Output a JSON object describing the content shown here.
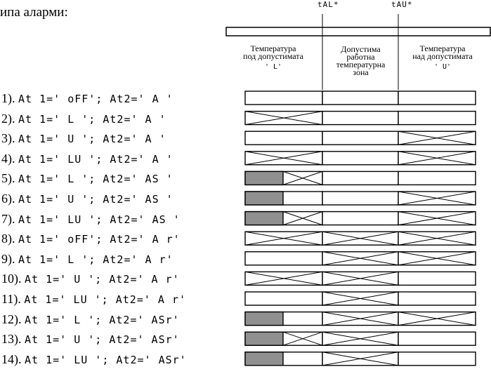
{
  "intro_text": "ипа аларми:",
  "markers": {
    "low": "tAL*",
    "high": "tAU*"
  },
  "columns": {
    "below": [
      "Температура",
      "под допустимата"
    ],
    "below_code": "' L'",
    "work": [
      "Допустима",
      "работна",
      "температурна",
      "зона"
    ],
    "above": [
      "Температура",
      "над допустимата"
    ],
    "above_code": "' U'"
  },
  "rows": [
    {
      "index": "1).",
      "config": "At 1=' oFF'; At2=' A '",
      "cells": [
        "blank",
        "blank",
        "blank"
      ]
    },
    {
      "index": "2).",
      "config": "At 1=' L '; At2=' A '",
      "cells": [
        "cross",
        "blank",
        "blank"
      ]
    },
    {
      "index": "3).",
      "config": "At 1=' U '; At2=' A '",
      "cells": [
        "blank",
        "blank",
        "cross"
      ]
    },
    {
      "index": "4).",
      "config": "At 1=' LU '; At2=' A '",
      "cells": [
        "cross",
        "blank",
        "cross"
      ]
    },
    {
      "index": "5).",
      "config": "At 1=' L '; At2=' AS '",
      "cells": [
        "shade-cross",
        "blank",
        "blank"
      ]
    },
    {
      "index": "6).",
      "config": "At 1=' U '; At2=' AS '",
      "cells": [
        "shade",
        "blank",
        "cross"
      ]
    },
    {
      "index": "7).",
      "config": "At 1=' LU '; At2=' AS '",
      "cells": [
        "shade-cross",
        "blank",
        "cross"
      ]
    },
    {
      "index": "8).",
      "config": "At 1=' oFF'; At2=' A r'",
      "cells": [
        "cross",
        "cross",
        "cross"
      ]
    },
    {
      "index": "9).",
      "config": "At 1=' L '; At2=' A r'",
      "cells": [
        "blank",
        "cross",
        "cross"
      ]
    },
    {
      "index": "10).",
      "config": "At 1=' U '; At2=' A r'",
      "cells": [
        "cross",
        "cross",
        "blank"
      ]
    },
    {
      "index": "11).",
      "config": "At 1=' LU '; At2=' A r'",
      "cells": [
        "blank",
        "cross",
        "blank"
      ]
    },
    {
      "index": "12).",
      "config": "At 1=' L '; At2=' ASr'",
      "cells": [
        "shade",
        "cross",
        "cross"
      ]
    },
    {
      "index": "13).",
      "config": "At 1=' U '; At2=' ASr'",
      "cells": [
        "shade-cross",
        "cross",
        "blank"
      ]
    },
    {
      "index": "14).",
      "config": "At 1=' LU '; At2=' ASr'",
      "cells": [
        "shade",
        "cross",
        "blank"
      ]
    }
  ],
  "colors": {
    "line": "#000000",
    "shade": "#909090"
  }
}
